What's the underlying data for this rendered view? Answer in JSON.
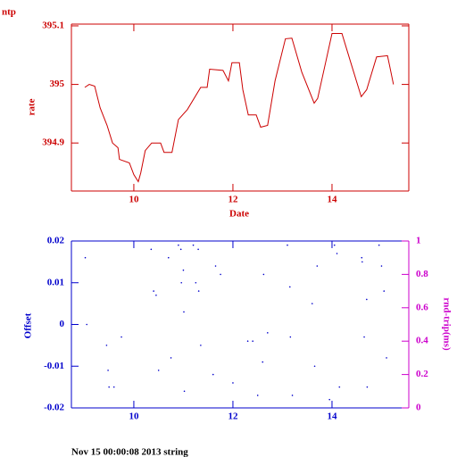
{
  "chart_data": [
    {
      "type": "line",
      "title": "ntp",
      "ylabel": "rate",
      "xlabel": "Date",
      "color": "#cc0000",
      "x": [
        9.01,
        9.1,
        9.21,
        9.32,
        9.46,
        9.57,
        9.68,
        9.71,
        9.91,
        10.0,
        10.09,
        10.14,
        10.23,
        10.36,
        10.54,
        10.61,
        10.77,
        10.9,
        11.08,
        11.35,
        11.48,
        11.53,
        11.8,
        11.91,
        11.98,
        12.13,
        12.2,
        12.31,
        12.47,
        12.56,
        12.7,
        12.85,
        13.06,
        13.19,
        13.39,
        13.64,
        13.71,
        13.87,
        14.0,
        14.2,
        14.38,
        14.59,
        14.7,
        14.9,
        15.12,
        15.17,
        15.24
      ],
      "values": [
        394.995,
        395.0,
        394.997,
        394.96,
        394.93,
        394.9,
        394.892,
        394.872,
        394.866,
        394.846,
        394.834,
        394.849,
        394.887,
        394.9,
        394.9,
        394.884,
        394.884,
        394.94,
        394.957,
        394.995,
        394.995,
        395.026,
        395.024,
        395.006,
        395.037,
        395.037,
        394.991,
        394.948,
        394.948,
        394.927,
        394.93,
        395.006,
        395.078,
        395.079,
        395.021,
        394.968,
        394.976,
        395.037,
        395.087,
        395.087,
        395.037,
        394.979,
        394.991,
        395.047,
        395.049,
        395.029,
        395.0
      ],
      "xlim": [
        8.74,
        15.55
      ],
      "xticks": [
        10,
        12,
        14
      ],
      "ylim": [
        394.818,
        395.103
      ],
      "yticks": [
        394.9,
        395,
        395.1
      ]
    },
    {
      "type": "scatter",
      "ylabel": "Offset",
      "y2label": "rnd-trip(ms)",
      "color": "#0000cc",
      "x": [
        9.02,
        9.05,
        9.45,
        9.48,
        9.5,
        9.6,
        9.75,
        10.35,
        10.4,
        10.45,
        10.5,
        10.7,
        10.75,
        10.9,
        10.95,
        10.96,
        11.0,
        11.01,
        11.02,
        11.2,
        11.25,
        11.3,
        11.31,
        11.35,
        11.6,
        11.65,
        11.75,
        12.0,
        12.3,
        12.4,
        12.5,
        12.6,
        12.62,
        12.7,
        13.1,
        13.15,
        13.16,
        13.2,
        13.6,
        13.65,
        13.7,
        13.95,
        14.05,
        14.1,
        14.15,
        14.6,
        14.61,
        14.65,
        14.7,
        14.71,
        14.95,
        15.0,
        15.05,
        15.1
      ],
      "values": [
        0.016,
        0.0,
        -0.005,
        -0.011,
        -0.015,
        -0.015,
        -0.003,
        0.018,
        0.008,
        0.007,
        -0.011,
        0.016,
        -0.008,
        0.019,
        0.018,
        0.01,
        0.013,
        0.003,
        -0.016,
        0.019,
        0.01,
        0.018,
        0.008,
        -0.005,
        -0.012,
        0.014,
        0.012,
        -0.014,
        -0.004,
        -0.004,
        -0.017,
        -0.009,
        0.012,
        -0.002,
        0.019,
        0.009,
        -0.003,
        -0.017,
        0.005,
        -0.01,
        0.014,
        -0.018,
        0.019,
        0.017,
        -0.015,
        0.016,
        0.015,
        -0.003,
        0.006,
        -0.015,
        0.019,
        0.014,
        0.008,
        -0.008
      ],
      "xlim": [
        8.74,
        15.55
      ],
      "xticks": [
        10,
        12,
        14
      ],
      "ylim": [
        -0.02,
        0.02
      ],
      "yticks": [
        -0.02,
        -0.01,
        0,
        0.01,
        0.02
      ],
      "y2lim": [
        0,
        1
      ],
      "y2ticks": [
        0,
        0.2,
        0.4,
        0.6,
        0.8,
        1
      ]
    }
  ],
  "footer": "Nov 15 00:00:08 2013 string"
}
